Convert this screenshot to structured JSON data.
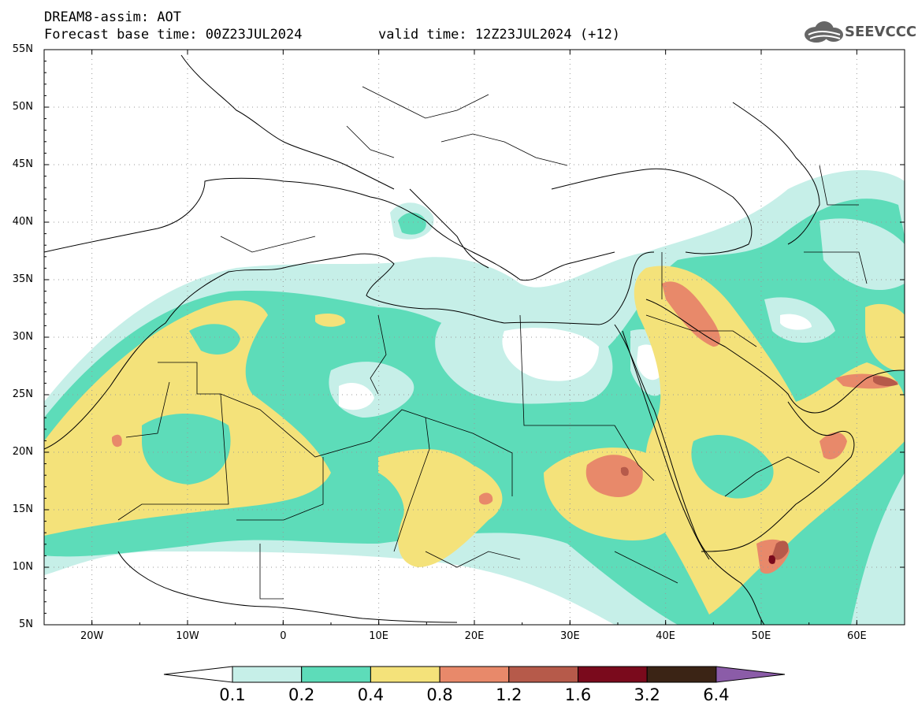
{
  "header": {
    "title": "DREAM8-assim: AOT",
    "base_time": "Forecast base time: 00Z23JUL2024",
    "valid_time": "valid time: 12Z23JUL2024 (+12)",
    "logo_text": "SEEVCCC"
  },
  "map": {
    "lon_range": [
      -25,
      65
    ],
    "lat_range": [
      5,
      55
    ],
    "lat_labels": [
      "55N",
      "50N",
      "45N",
      "40N",
      "35N",
      "30N",
      "25N",
      "20N",
      "15N",
      "10N",
      "5N"
    ],
    "lon_labels": [
      "20W",
      "10W",
      "0",
      "10E",
      "20E",
      "30E",
      "40E",
      "50E",
      "60E"
    ],
    "colors": {
      "white": "#ffffff",
      "c01": "#c6efe8",
      "c02": "#5ddcb9",
      "c04": "#f4e27a",
      "c08": "#e8896a",
      "c12": "#b65a4a",
      "c16": "#7a0a1c",
      "c32": "#3b2415",
      "c64": "#8b5ca8"
    }
  },
  "colorbar": {
    "labels": [
      "0.1",
      "0.2",
      "0.4",
      "0.8",
      "1.2",
      "1.6",
      "3.2",
      "6.4"
    ],
    "colors": [
      "#c6efe8",
      "#5ddcb9",
      "#f4e27a",
      "#e8896a",
      "#b65a4a",
      "#7a0a1c",
      "#3b2415"
    ],
    "low_arrow_color": "#ffffff",
    "high_arrow_color": "#8b5ca8"
  }
}
